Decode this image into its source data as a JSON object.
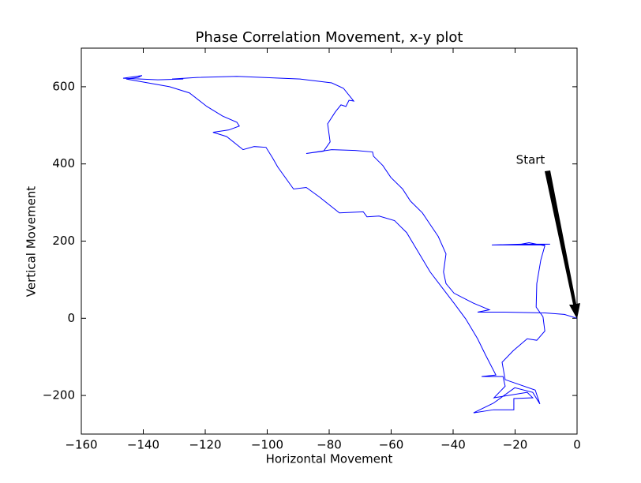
{
  "chart_data": {
    "type": "line",
    "title": "Phase Correlation Movement, x-y plot",
    "x_label": "Horizontal Movement",
    "y_label": "Vertical Movement",
    "annotation": "Start",
    "series": [
      {
        "color": "#0000ff",
        "x": [
          0,
          -4.1,
          -10.4,
          -23.2,
          -32.1,
          -28.3,
          -33.4,
          -39.7,
          -42.3,
          -43.1,
          -42.3,
          -44.8,
          -47.4,
          -49.9,
          -53.8,
          -56.3,
          -60.1,
          -62.7,
          -65.7,
          -66.0,
          -71.6,
          -79.2,
          -87.4,
          -81.8,
          -79.7,
          -80.5,
          -78.0,
          -76.2,
          -74.6,
          -73.6,
          -72.1,
          -75.4,
          -79.2,
          -89.4,
          -109.8,
          -122.5,
          -130.7,
          -127.1,
          -135.3,
          -146.5,
          -140.4,
          -141.7,
          -145.5,
          -131.5,
          -125.1,
          -119.5,
          -114.4,
          -109.8,
          -109.0,
          -112.4,
          -117.5,
          -113.1,
          -107.8,
          -104.2,
          -100.4,
          -98.3,
          -96.6,
          -91.5,
          -87.4,
          -83.1,
          -76.7,
          -69.0,
          -67.8,
          -63.9,
          -58.9,
          -55.0,
          -51.2,
          -47.4,
          -43.6,
          -39.7,
          -35.9,
          -32.1,
          -29.6,
          -26.2,
          -30.8,
          -23.9,
          -23.2,
          -26.8,
          -16.1,
          -14.3,
          -20.4,
          -20.4,
          -27.0,
          -33.4,
          -27.0,
          -20.1,
          -14.3,
          -12.0,
          -13.5,
          -23.2,
          -24.2,
          -20.6,
          -16.1,
          -13.0,
          -10.4,
          -11.0,
          -13.2,
          -13.0,
          -11.7,
          -10.4,
          -15.5,
          -19.4,
          -8.7,
          -18.1,
          -27.5,
          -10.4
        ],
        "values": [
          0,
          10,
          14,
          16,
          16,
          22,
          39,
          65,
          90,
          120,
          167,
          212,
          243,
          273,
          304,
          335,
          365,
          396,
          420,
          431,
          435,
          437,
          427,
          433,
          457,
          504,
          535,
          553,
          549,
          565,
          563,
          596,
          610,
          620,
          627,
          624,
          620,
          620,
          618,
          622,
          629,
          624,
          620,
          600,
          584,
          549,
          524,
          508,
          498,
          488,
          482,
          471,
          437,
          445,
          443,
          416,
          392,
          335,
          339,
          314,
          273,
          276,
          263,
          265,
          253,
          222,
          171,
          120,
          80,
          39,
          -2,
          -53,
          -94,
          -147,
          -151,
          -151,
          -176,
          -206,
          -192,
          -206,
          -208,
          -237,
          -237,
          -245,
          -220,
          -180,
          -192,
          -222,
          -186,
          -159,
          -114,
          -84,
          -53,
          -57,
          -33,
          4,
          29,
          90,
          151,
          188,
          196,
          190,
          192,
          192,
          190,
          190
        ]
      }
    ],
    "xlim": [
      -160,
      0
    ],
    "ylim": [
      -300,
      700
    ],
    "xticks": [
      {
        "value": -160,
        "label": "−160"
      },
      {
        "value": -140,
        "label": "−140"
      },
      {
        "value": -120,
        "label": "−120"
      },
      {
        "value": -100,
        "label": "−100"
      },
      {
        "value": -80,
        "label": "−80"
      },
      {
        "value": -60,
        "label": "−60"
      },
      {
        "value": -40,
        "label": "−40"
      },
      {
        "value": -20,
        "label": "−20"
      },
      0
    ],
    "yticks": [
      {
        "value": -200,
        "label": "−200"
      },
      0,
      200,
      400,
      600
    ],
    "grid": false
  }
}
